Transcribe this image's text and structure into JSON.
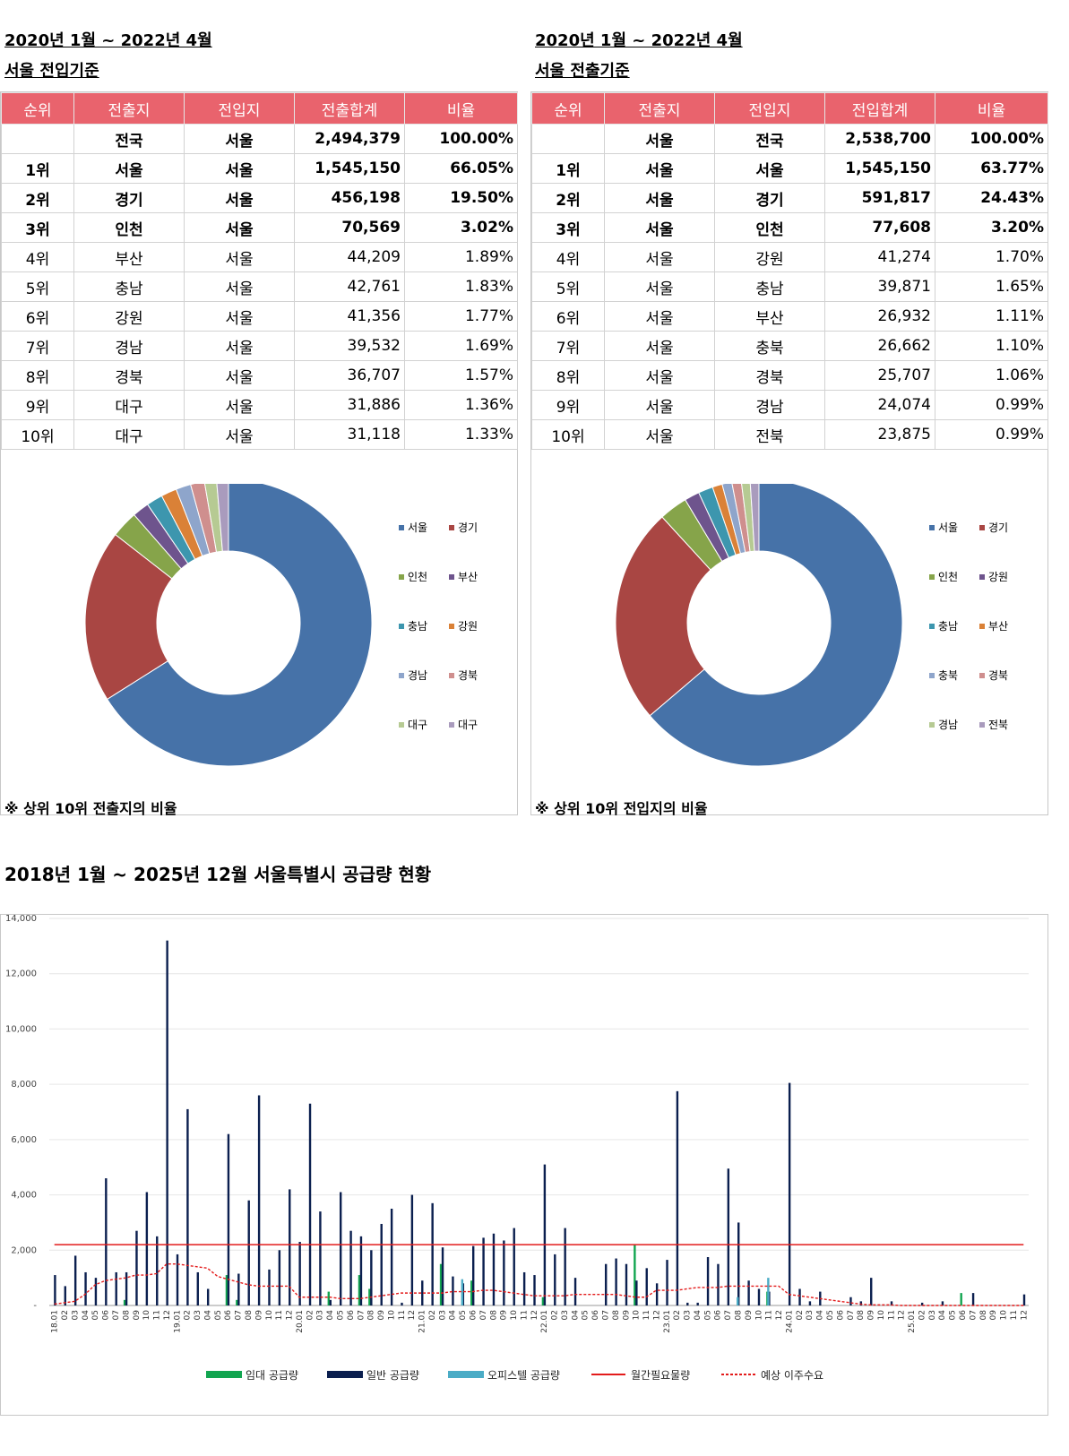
{
  "left": {
    "period": "2020년 1월 ~  2022년 4월",
    "basis": "서울 전입기준",
    "headers": [
      "순위",
      "전출지",
      "전입지",
      "전출합계",
      "비율"
    ],
    "rows": [
      [
        "",
        "전국",
        "서울",
        "2,494,379",
        "100.00%"
      ],
      [
        "1위",
        "서울",
        "서울",
        "1,545,150",
        "66.05%"
      ],
      [
        "2위",
        "경기",
        "서울",
        "456,198",
        "19.50%"
      ],
      [
        "3위",
        "인천",
        "서울",
        "70,569",
        "3.02%"
      ],
      [
        "4위",
        "부산",
        "서울",
        "44,209",
        "1.89%"
      ],
      [
        "5위",
        "충남",
        "서울",
        "42,761",
        "1.83%"
      ],
      [
        "6위",
        "강원",
        "서울",
        "41,356",
        "1.77%"
      ],
      [
        "7위",
        "경남",
        "서울",
        "39,532",
        "1.69%"
      ],
      [
        "8위",
        "경북",
        "서울",
        "36,707",
        "1.57%"
      ],
      [
        "9위",
        "대구",
        "서울",
        "31,886",
        "1.36%"
      ],
      [
        "10위",
        "대구",
        "서울",
        "31,118",
        "1.33%"
      ]
    ],
    "note": "※ 상위 10위 전출지의 비율"
  },
  "right": {
    "period": "2020년 1월 ~  2022년 4월",
    "basis": "서울 전출기준",
    "headers": [
      "순위",
      "전출지",
      "전입지",
      "전입합계",
      "비율"
    ],
    "rows": [
      [
        "",
        "서울",
        "전국",
        "2,538,700",
        "100.00%"
      ],
      [
        "1위",
        "서울",
        "서울",
        "1,545,150",
        "63.77%"
      ],
      [
        "2위",
        "서울",
        "경기",
        "591,817",
        "24.43%"
      ],
      [
        "3위",
        "서울",
        "인천",
        "77,608",
        "3.20%"
      ],
      [
        "4위",
        "서울",
        "강원",
        "41,274",
        "1.70%"
      ],
      [
        "5위",
        "서울",
        "충남",
        "39,871",
        "1.65%"
      ],
      [
        "6위",
        "서울",
        "부산",
        "26,932",
        "1.11%"
      ],
      [
        "7위",
        "서울",
        "충북",
        "26,662",
        "1.10%"
      ],
      [
        "8위",
        "서울",
        "경북",
        "25,707",
        "1.06%"
      ],
      [
        "9위",
        "서울",
        "경남",
        "24,074",
        "0.99%"
      ],
      [
        "10위",
        "서울",
        "전북",
        "23,875",
        "0.99%"
      ]
    ],
    "note": "※ 상위 10위 전입지의 비율"
  },
  "colors": {
    "header_bg": "#e9636d",
    "pie": [
      "#4672a8",
      "#a94643",
      "#86a44a",
      "#6e548d",
      "#3d96ae",
      "#da8137",
      "#8ea5cb",
      "#cf8f8e",
      "#b6ca93",
      "#a99bbd"
    ],
    "bar_rental": "#12a550",
    "bar_general": "#0b1f4f",
    "bar_officetel": "#4bacc6",
    "line_need": "#e31b1b",
    "line_expected": "#e31b1b"
  },
  "supply_title": "2018년 1월 ~ 2025년 12월 서울특별시 공급량 현황",
  "chart_data": [
    {
      "type": "pie",
      "variant": "donut",
      "labels": [
        "서울",
        "경기",
        "인천",
        "부산",
        "충남",
        "강원",
        "경남",
        "경북",
        "대구",
        "대구"
      ],
      "values": [
        66.05,
        19.5,
        3.02,
        1.89,
        1.83,
        1.77,
        1.69,
        1.57,
        1.36,
        1.33
      ],
      "legend": "right"
    },
    {
      "type": "pie",
      "variant": "donut",
      "labels": [
        "서울",
        "경기",
        "인천",
        "강원",
        "충남",
        "부산",
        "충북",
        "경북",
        "경남",
        "전북"
      ],
      "values": [
        63.77,
        24.43,
        3.2,
        1.7,
        1.65,
        1.11,
        1.1,
        1.06,
        0.99,
        0.99
      ],
      "legend": "right"
    },
    {
      "type": "bar",
      "categories": [
        "18.01",
        "02",
        "03",
        "04",
        "05",
        "06",
        "07",
        "08",
        "09",
        "10",
        "11",
        "12",
        "19.01",
        "02",
        "03",
        "04",
        "05",
        "06",
        "07",
        "08",
        "09",
        "10",
        "11",
        "12",
        "20.01",
        "02",
        "03",
        "04",
        "05",
        "06",
        "07",
        "08",
        "09",
        "10",
        "11",
        "12",
        "21.01",
        "02",
        "03",
        "04",
        "05",
        "06",
        "07",
        "08",
        "09",
        "10",
        "11",
        "12",
        "22.01",
        "02",
        "03",
        "04",
        "05",
        "06",
        "07",
        "08",
        "09",
        "10",
        "11",
        "12",
        "23.01",
        "02",
        "03",
        "04",
        "05",
        "06",
        "07",
        "08",
        "09",
        "10",
        "11",
        "12",
        "24.01",
        "02",
        "03",
        "04",
        "05",
        "06",
        "07",
        "08",
        "09",
        "10",
        "11",
        "12",
        "25.01",
        "02",
        "03",
        "04",
        "05",
        "06",
        "07",
        "08",
        "09",
        "10",
        "11",
        "12"
      ],
      "ylim": [
        0,
        14000
      ],
      "yticks": [
        "-",
        "2,000",
        "4,000",
        "6,000",
        "8,000",
        "10,000",
        "12,000",
        "14,000"
      ],
      "legend": "bottom",
      "series": [
        {
          "name": "임대 공급량",
          "kind": "bar",
          "values": [
            0,
            0,
            0,
            0,
            0,
            0,
            0,
            200,
            0,
            0,
            0,
            0,
            0,
            0,
            0,
            0,
            0,
            1100,
            200,
            0,
            0,
            0,
            0,
            0,
            0,
            0,
            0,
            500,
            0,
            0,
            1100,
            600,
            0,
            0,
            0,
            0,
            0,
            0,
            1500,
            0,
            0,
            900,
            0,
            0,
            0,
            0,
            0,
            0,
            300,
            0,
            0,
            0,
            0,
            0,
            0,
            0,
            0,
            2200,
            0,
            0,
            0,
            0,
            0,
            0,
            0,
            0,
            0,
            0,
            0,
            0,
            500,
            0,
            0,
            0,
            0,
            0,
            0,
            0,
            0,
            0,
            0,
            0,
            0,
            0,
            0,
            0,
            0,
            0,
            0,
            450,
            0,
            0,
            0,
            0,
            0,
            0
          ]
        },
        {
          "name": "일반 공급량",
          "kind": "bar",
          "values": [
            1100,
            700,
            1800,
            1200,
            1000,
            4600,
            1200,
            1200,
            2700,
            4100,
            2500,
            13200,
            1850,
            7100,
            1200,
            600,
            0,
            6200,
            1150,
            3800,
            7600,
            1300,
            2000,
            4200,
            2300,
            7300,
            3400,
            200,
            4100,
            2700,
            2500,
            2000,
            2950,
            3500,
            100,
            4000,
            900,
            3700,
            2100,
            1050,
            800,
            2150,
            2450,
            2600,
            2350,
            2800,
            1200,
            1100,
            5100,
            1850,
            2800,
            1000,
            0,
            0,
            1500,
            1700,
            1500,
            900,
            1350,
            800,
            1650,
            7750,
            100,
            100,
            1750,
            1500,
            4950,
            3000,
            900,
            600,
            500,
            0,
            8050,
            600,
            150,
            500,
            0,
            0,
            300,
            150,
            1000,
            0,
            150,
            0,
            0,
            100,
            0,
            150,
            0,
            0,
            450,
            0,
            0,
            0,
            0,
            400
          ]
        },
        {
          "name": "오피스텔 공급량",
          "kind": "bar",
          "values": [
            0,
            0,
            0,
            0,
            0,
            0,
            0,
            0,
            0,
            0,
            0,
            0,
            0,
            0,
            0,
            0,
            0,
            0,
            0,
            0,
            0,
            0,
            0,
            0,
            0,
            0,
            0,
            0,
            0,
            0,
            0,
            0,
            0,
            0,
            0,
            0,
            0,
            0,
            0,
            0,
            950,
            0,
            0,
            0,
            0,
            0,
            0,
            0,
            0,
            0,
            0,
            0,
            0,
            0,
            0,
            0,
            0,
            0,
            0,
            0,
            0,
            0,
            0,
            0,
            0,
            0,
            0,
            300,
            0,
            0,
            1000,
            0,
            0,
            0,
            0,
            0,
            0,
            0,
            0,
            0,
            0,
            0,
            0,
            0,
            0,
            0,
            0,
            0,
            0,
            0,
            0,
            0,
            0,
            0,
            0,
            0
          ]
        },
        {
          "name": "월간필요물량",
          "kind": "line",
          "style": "solid",
          "values": [
            2200,
            2200,
            2200,
            2200,
            2200,
            2200,
            2200,
            2200,
            2200,
            2200,
            2200,
            2200,
            2200,
            2200,
            2200,
            2200,
            2200,
            2200,
            2200,
            2200,
            2200,
            2200,
            2200,
            2200,
            2200,
            2200,
            2200,
            2200,
            2200,
            2200,
            2200,
            2200,
            2200,
            2200,
            2200,
            2200,
            2200,
            2200,
            2200,
            2200,
            2200,
            2200,
            2200,
            2200,
            2200,
            2200,
            2200,
            2200,
            2200,
            2200,
            2200,
            2200,
            2200,
            2200,
            2200,
            2200,
            2200,
            2200,
            2200,
            2200,
            2200,
            2200,
            2200,
            2200,
            2200,
            2200,
            2200,
            2200,
            2200,
            2200,
            2200,
            2200,
            2200,
            2200,
            2200,
            2200,
            2200,
            2200,
            2200,
            2200,
            2200,
            2200,
            2200,
            2200,
            2200,
            2200,
            2200,
            2200,
            2200,
            2200,
            2200,
            2200,
            2200,
            2200,
            2200,
            2200
          ]
        },
        {
          "name": "예상 이주수요",
          "kind": "line",
          "style": "dashed",
          "values": [
            50,
            100,
            150,
            400,
            750,
            900,
            950,
            1000,
            1100,
            1100,
            1150,
            1500,
            1500,
            1450,
            1400,
            1350,
            1050,
            950,
            850,
            750,
            700,
            700,
            700,
            700,
            300,
            300,
            300,
            300,
            250,
            250,
            250,
            300,
            350,
            400,
            450,
            450,
            450,
            450,
            450,
            500,
            500,
            500,
            550,
            550,
            500,
            450,
            400,
            350,
            350,
            350,
            350,
            400,
            400,
            400,
            400,
            400,
            350,
            300,
            300,
            550,
            550,
            550,
            600,
            650,
            650,
            650,
            700,
            700,
            700,
            700,
            700,
            700,
            400,
            350,
            300,
            250,
            200,
            150,
            100,
            50,
            20,
            20,
            20,
            0,
            0,
            0,
            0,
            0,
            0,
            0,
            0,
            0,
            0,
            0,
            0,
            0
          ]
        }
      ]
    }
  ]
}
